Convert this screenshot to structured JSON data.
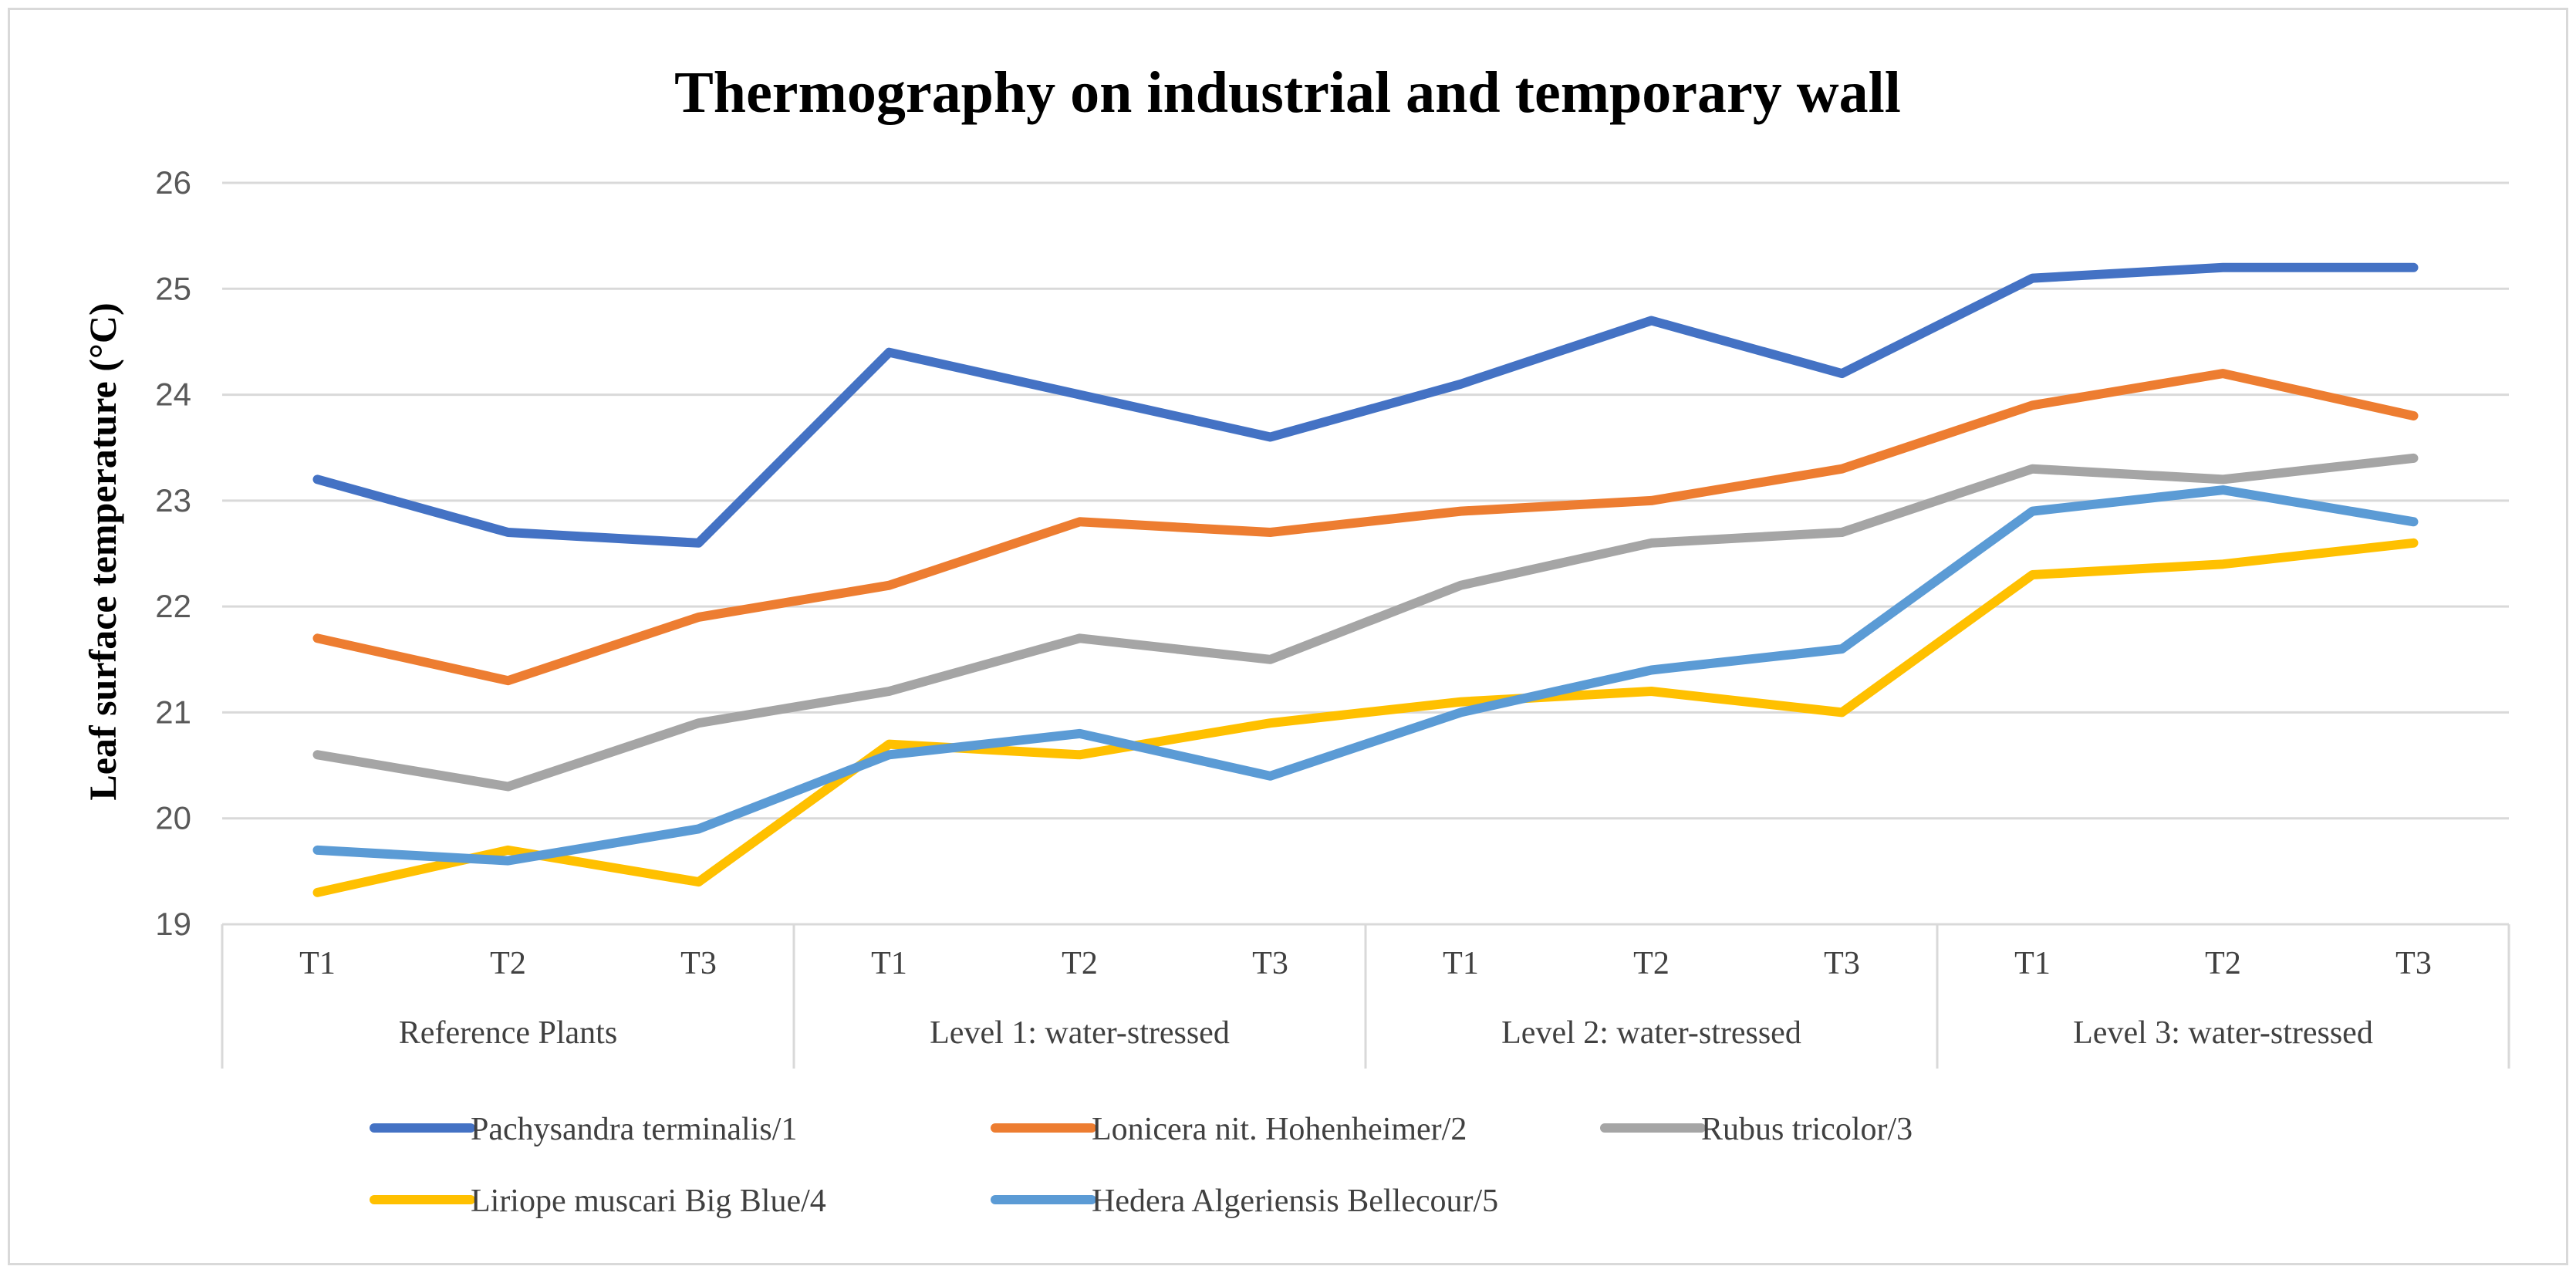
{
  "chart_data": {
    "type": "line",
    "title": "Thermography  on industrial and temporary wall",
    "ylabel": "Leaf surface temperature (°C)",
    "xlabel": "",
    "ylim": [
      19,
      26
    ],
    "yticks": [
      19,
      20,
      21,
      22,
      23,
      24,
      25,
      26
    ],
    "grid": true,
    "legend_position": "bottom",
    "groups": [
      {
        "label": "Reference Plants",
        "categories": [
          "T1",
          "T2",
          "T3"
        ]
      },
      {
        "label": "Level 1: water-stressed",
        "categories": [
          "T1",
          "T2",
          "T3"
        ]
      },
      {
        "label": "Level 2: water-stressed",
        "categories": [
          "T1",
          "T2",
          "T3"
        ]
      },
      {
        "label": "Level 3: water-stressed",
        "categories": [
          "T1",
          "T2",
          "T3"
        ]
      }
    ],
    "series": [
      {
        "name": "Pachysandra terminalis/1",
        "color": "#4472C4",
        "values": [
          23.2,
          22.7,
          22.6,
          24.4,
          24.0,
          23.6,
          24.1,
          24.7,
          24.2,
          25.1,
          25.2,
          25.2
        ]
      },
      {
        "name": "Lonicera nit. Hohenheimer/2",
        "color": "#ED7D31",
        "values": [
          21.7,
          21.3,
          21.9,
          22.2,
          22.8,
          22.7,
          22.9,
          23.0,
          23.3,
          23.9,
          24.2,
          23.8
        ]
      },
      {
        "name": "Rubus tricolor/3",
        "color": "#A5A5A5",
        "values": [
          20.6,
          20.3,
          20.9,
          21.2,
          21.7,
          21.5,
          22.2,
          22.6,
          22.7,
          23.3,
          23.2,
          23.4
        ]
      },
      {
        "name": "Liriope muscari Big Blue/4",
        "color": "#FFC000",
        "values": [
          19.3,
          19.7,
          19.4,
          20.7,
          20.6,
          20.9,
          21.1,
          21.2,
          21.0,
          22.3,
          22.4,
          22.6
        ]
      },
      {
        "name": "Hedera Algeriensis Bellecour/5",
        "color": "#5B9BD5",
        "values": [
          19.7,
          19.6,
          19.9,
          20.6,
          20.8,
          20.4,
          21.0,
          21.4,
          21.6,
          22.9,
          23.1,
          22.8
        ]
      }
    ]
  }
}
